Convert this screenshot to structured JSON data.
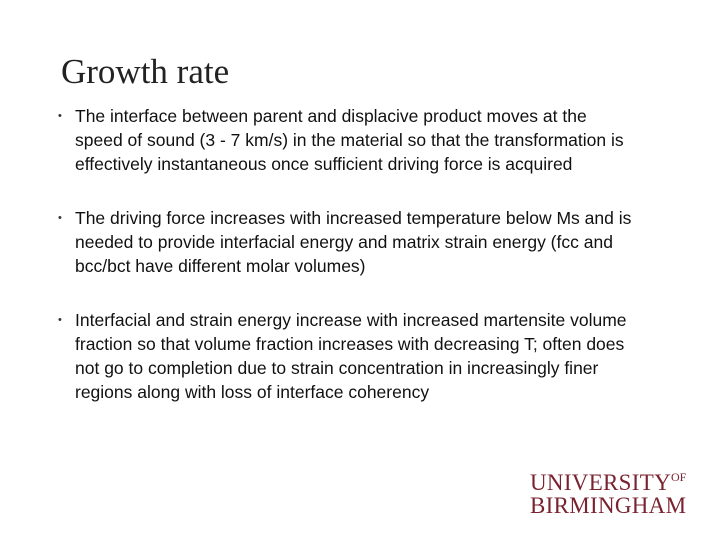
{
  "slide": {
    "title": "Growth rate",
    "bullet_symbol": "•",
    "bullets": [
      "The interface between parent and displacive product moves at the speed of sound (3 - 7 km/s) in the material so that the transformation is effectively instantaneous once sufficient driving force is acquired",
      "The driving force increases with increased temperature below Ms and is needed to provide interfacial energy and matrix strain energy (fcc and bcc/bct have different molar volumes)",
      "Interfacial and strain energy increase with increased martensite volume fraction so that volume fraction increases with decreasing T; often does not go to completion due to strain concentration in increasingly finer regions along with loss of interface coherency"
    ]
  },
  "logo": {
    "line1": "UNIVERSITY",
    "of": "OF",
    "line2": "BIRMINGHAM",
    "color": "#7a2330"
  }
}
